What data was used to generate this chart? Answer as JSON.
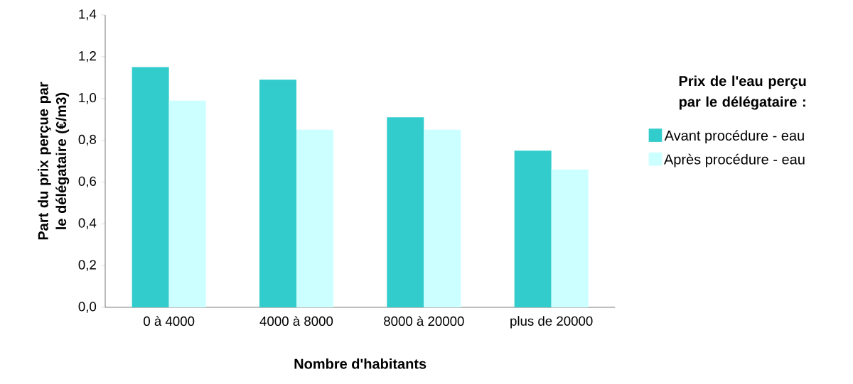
{
  "chart_data": {
    "type": "bar",
    "xlabel": "Nombre d'habitants",
    "ylabel": "Part du prix perçue par le délégataire (€/m3)",
    "legend_title": "Prix de l'eau perçu par le délégataire :",
    "legend": "right",
    "categories": [
      "0 à 4000",
      "4000 à 8000",
      "8000 à 20000",
      "plus de 20000"
    ],
    "series": [
      {
        "name": "Avant procédure - eau",
        "color": "#33cccc",
        "values": [
          1.15,
          1.09,
          0.91,
          0.75
        ]
      },
      {
        "name": "Après procédure - eau",
        "color": "#ccffff",
        "values": [
          0.99,
          0.85,
          0.85,
          0.66
        ]
      }
    ],
    "ylim": [
      0,
      1.4
    ],
    "yticks": [
      {
        "value": 0,
        "label": "0,0"
      },
      {
        "value": 0.2,
        "label": "0,2"
      },
      {
        "value": 0.4,
        "label": "0,4"
      },
      {
        "value": 0.6,
        "label": "0,6"
      },
      {
        "value": 0.8,
        "label": "0,8"
      },
      {
        "value": 1.0,
        "label": "1,0"
      },
      {
        "value": 1.2,
        "label": "1,2"
      },
      {
        "value": 1.4,
        "label": "1,4"
      }
    ]
  }
}
